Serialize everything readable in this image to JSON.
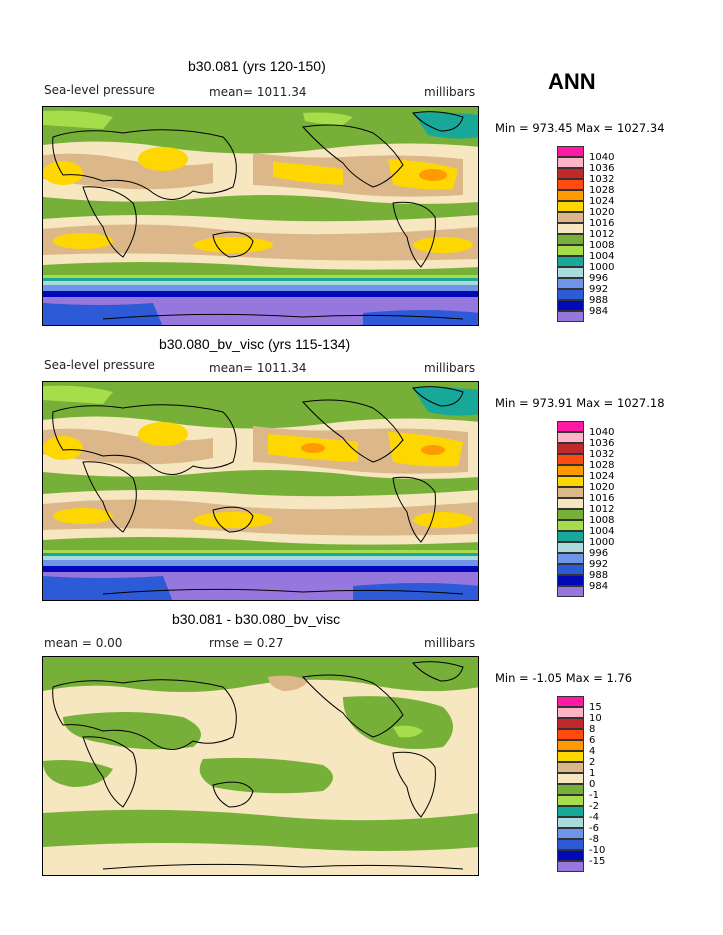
{
  "season": "ANN",
  "panels": [
    {
      "title": "b30.081 (yrs 120-150)",
      "left_label": "Sea-level pressure",
      "center_label": "mean= 1011.34",
      "right_label": "millibars",
      "minmax": "Min = 973.45 Max = 1027.34",
      "levels": [
        "1040",
        "1036",
        "1032",
        "1028",
        "1024",
        "1020",
        "1016",
        "1012",
        "1008",
        "1004",
        "1000",
        "996",
        "992",
        "988",
        "984"
      ]
    },
    {
      "title": "b30.080_bv_visc (yrs 115-134)",
      "left_label": "Sea-level pressure",
      "center_label": "mean= 1011.34",
      "right_label": "millibars",
      "minmax": "Min = 973.91 Max = 1027.18",
      "levels": [
        "1040",
        "1036",
        "1032",
        "1028",
        "1024",
        "1020",
        "1016",
        "1012",
        "1008",
        "1004",
        "1000",
        "996",
        "992",
        "988",
        "984"
      ]
    },
    {
      "title": "b30.081 - b30.080_bv_visc",
      "left_label": "mean =     0.00",
      "center_label": "rmse =     0.27",
      "right_label": "millibars",
      "minmax": "Min =   -1.05 Max =     1.76",
      "levels": [
        "15",
        "10",
        "8",
        "6",
        "4",
        "2",
        "1",
        "0",
        "-1",
        "-2",
        "-4",
        "-6",
        "-8",
        "-10",
        "-15"
      ]
    }
  ],
  "colors": {
    "magenta": "#ff1aa5",
    "pink": "#ffb3c6",
    "darkred": "#c0282b",
    "red": "#ff4a10",
    "orange": "#ff9a00",
    "yellow": "#ffd700",
    "tan": "#dbb78a",
    "cream": "#f6e7c1",
    "green": "#77b038",
    "lightgreen": "#a6dd4b",
    "teal": "#17a89a",
    "lightblue": "#a9dbdd",
    "cornflower": "#6f95e8",
    "blue": "#2d5ad6",
    "navy": "#0008b8",
    "purple": "#9577de"
  }
}
